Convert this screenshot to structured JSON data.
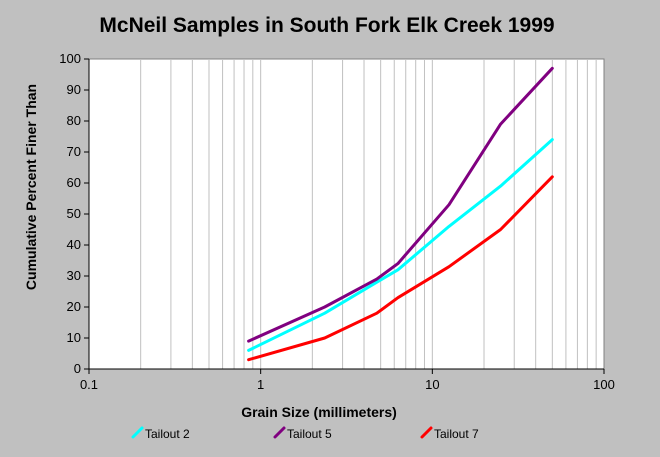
{
  "chart_data": {
    "type": "line",
    "title": "McNeil Samples in South Fork Elk Creek 1999",
    "xlabel": "Grain Size (millimeters)",
    "ylabel": "Cumulative Percent Finer Than",
    "xscale": "log",
    "xlim": [
      0.1,
      100
    ],
    "ylim": [
      0,
      100
    ],
    "x_ticks": [
      0.1,
      1,
      10,
      100
    ],
    "x_tick_labels": [
      "0.1",
      "1",
      "10",
      "100"
    ],
    "y_ticks": [
      0,
      10,
      20,
      30,
      40,
      50,
      60,
      70,
      80,
      90,
      100
    ],
    "y_tick_labels": [
      "0",
      "10",
      "20",
      "30",
      "40",
      "50",
      "60",
      "70",
      "80",
      "90",
      "100"
    ],
    "grid": "vertical log minor lines",
    "legend_position": "bottom",
    "series": [
      {
        "name": "Tailout 2",
        "color": "#00ffff",
        "x": [
          0.85,
          2.36,
          4.75,
          6.3,
          12.5,
          25,
          50
        ],
        "y": [
          6,
          18,
          28,
          32,
          46,
          59,
          74
        ]
      },
      {
        "name": "Tailout 5",
        "color": "#800080",
        "x": [
          0.85,
          2.36,
          4.75,
          6.3,
          12.5,
          25,
          50
        ],
        "y": [
          9,
          20,
          29,
          34,
          53,
          79,
          97
        ]
      },
      {
        "name": "Tailout 7",
        "color": "#ff0000",
        "x": [
          0.85,
          2.36,
          4.75,
          6.3,
          12.5,
          25,
          50
        ],
        "y": [
          3,
          10,
          18,
          23,
          33,
          45,
          62
        ]
      }
    ]
  }
}
